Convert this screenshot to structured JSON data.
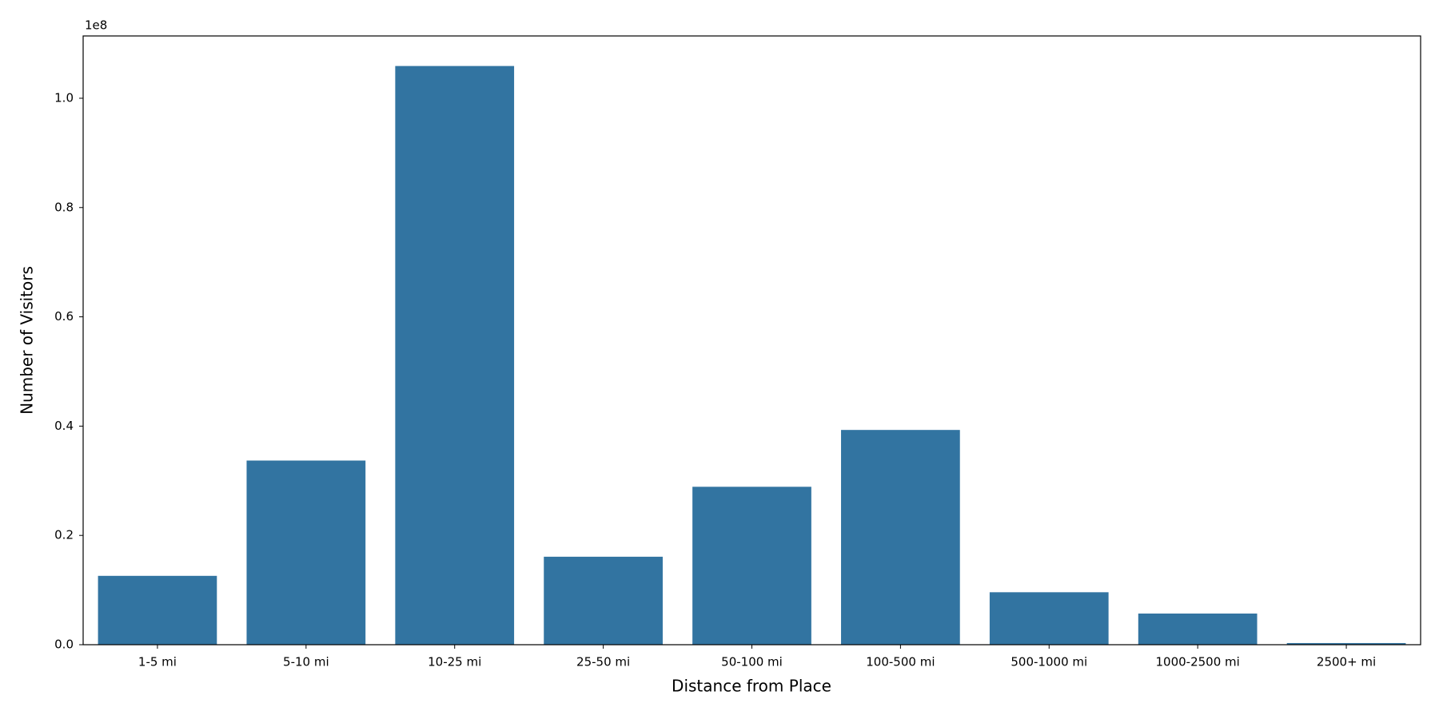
{
  "chart_data": {
    "type": "bar",
    "x_label": "Distance from Place",
    "y_label": "Number of Visitors",
    "y_offset_label": "1e8",
    "categories": [
      "1-5 mi",
      "5-10 mi",
      "10-25 mi",
      "25-50 mi",
      "50-100 mi",
      "100-500 mi",
      "500-1000 mi",
      "1000-2500 mi",
      "2500+ mi"
    ],
    "values": [
      12600000,
      33700000,
      105900000,
      16100000,
      28900000,
      39300000,
      9600000,
      5700000,
      300000
    ],
    "color": "#3274a1",
    "ylim": [
      0,
      111400000
    ],
    "yticks": [
      {
        "value": 0,
        "label": "0.0"
      },
      {
        "value": 20000000,
        "label": "0.2"
      },
      {
        "value": 40000000,
        "label": "0.4"
      },
      {
        "value": 60000000,
        "label": "0.6"
      },
      {
        "value": 80000000,
        "label": "0.8"
      },
      {
        "value": 100000000,
        "label": "1.0"
      }
    ],
    "grid": false
  }
}
